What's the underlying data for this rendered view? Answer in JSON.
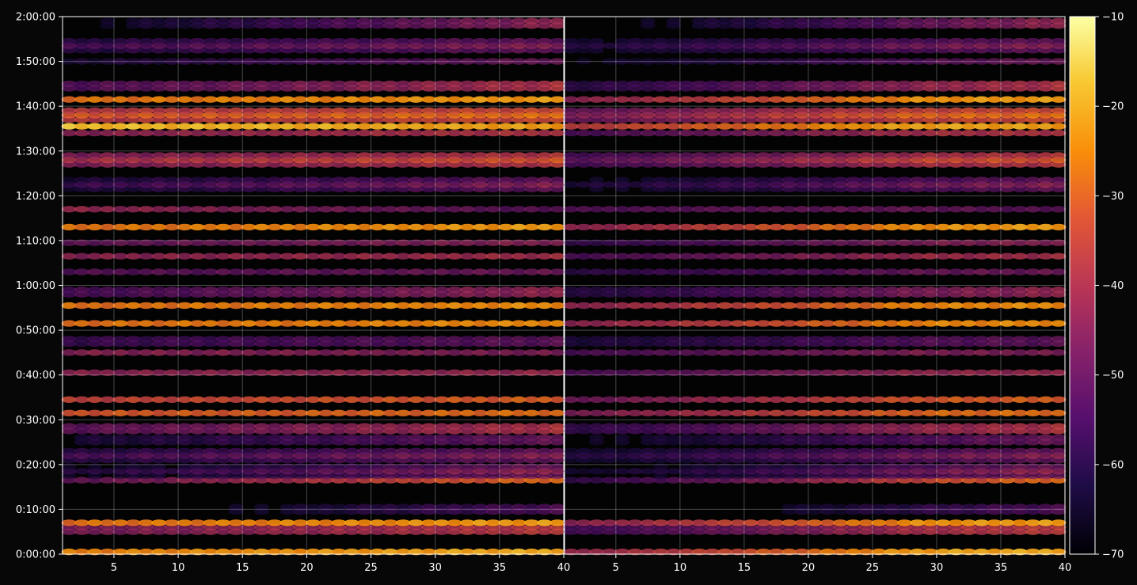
{
  "chart_data": {
    "type": "heatmap",
    "colormap": "inferno",
    "background": "#070707",
    "grid": true,
    "panels": [
      {
        "name": "",
        "xlim": [
          1,
          40
        ],
        "x_ticks": [
          5,
          10,
          15,
          20,
          25,
          30,
          35,
          40
        ],
        "intensity_scale": 1.0
      },
      {
        "name": "",
        "xlim": [
          1,
          40
        ],
        "x_ticks": [
          5,
          10,
          15,
          20,
          25,
          30,
          35,
          40
        ],
        "intensity_scale": 0.62
      }
    ],
    "y_axis": {
      "label": "",
      "min_seconds": 0,
      "max_seconds": 7200,
      "tick_labels": [
        "0:00:00",
        "0:10:00",
        "0:20:00",
        "0:30:00",
        "0:40:00",
        "0:50:00",
        "1:00:00",
        "1:10:00",
        "1:20:00",
        "1:30:00",
        "1:40:00",
        "1:50:00",
        "2:00:00"
      ]
    },
    "colorbar": {
      "min": -70,
      "max": -10,
      "ticks": [
        "−10",
        "−20",
        "−30",
        "−40",
        "−50",
        "−60",
        "−70"
      ]
    },
    "bands": [
      {
        "t_min": 0.5,
        "level_start": -26,
        "level_end": -20,
        "spread": 0.3
      },
      {
        "t_min": 5.5,
        "level_start": -44,
        "level_end": -34,
        "spread": 0.6
      },
      {
        "t_min": 7.0,
        "level_start": -28,
        "level_end": -22,
        "spread": 0.3
      },
      {
        "t_min": 10.0,
        "level_start": -68,
        "level_end": -50,
        "spread": 0.8
      },
      {
        "t_min": 16.5,
        "level_start": -50,
        "level_end": -28,
        "spread": 0.4
      },
      {
        "t_min": 18.5,
        "level_start": -60,
        "level_end": -42,
        "spread": 1.2
      },
      {
        "t_min": 22.0,
        "level_start": -54,
        "level_end": -44,
        "spread": 1.0
      },
      {
        "t_min": 25.5,
        "level_start": -60,
        "level_end": -46,
        "spread": 0.8
      },
      {
        "t_min": 28.0,
        "level_start": -48,
        "level_end": -36,
        "spread": 0.8
      },
      {
        "t_min": 31.5,
        "level_start": -32,
        "level_end": -28,
        "spread": 0.5
      },
      {
        "t_min": 34.5,
        "level_start": -36,
        "level_end": -30,
        "spread": 0.4
      },
      {
        "t_min": 40.5,
        "level_start": -44,
        "level_end": -42,
        "spread": 0.3
      },
      {
        "t_min": 45.0,
        "level_start": -44,
        "level_end": -46,
        "spread": 0.3
      },
      {
        "t_min": 47.5,
        "level_start": -54,
        "level_end": -48,
        "spread": 0.6
      },
      {
        "t_min": 51.5,
        "level_start": -28,
        "level_end": -24,
        "spread": 0.4
      },
      {
        "t_min": 55.5,
        "level_start": -28,
        "level_end": -24,
        "spread": 0.4
      },
      {
        "t_min": 58.5,
        "level_start": -52,
        "level_end": -40,
        "spread": 0.8
      },
      {
        "t_min": 63.0,
        "level_start": -52,
        "level_end": -48,
        "spread": 0.5
      },
      {
        "t_min": 66.5,
        "level_start": -44,
        "level_end": -40,
        "spread": 0.4
      },
      {
        "t_min": 69.5,
        "level_start": -50,
        "level_end": -44,
        "spread": 0.5
      },
      {
        "t_min": 73.0,
        "level_start": -28,
        "level_end": -22,
        "spread": 0.3
      },
      {
        "t_min": 77.0,
        "level_start": -42,
        "level_end": -52,
        "spread": 0.3
      },
      {
        "t_min": 82.5,
        "level_start": -56,
        "level_end": -44,
        "spread": 1.2
      },
      {
        "t_min": 88.0,
        "level_start": -40,
        "level_end": -32,
        "spread": 1.2
      },
      {
        "t_min": 94.0,
        "level_start": -44,
        "level_end": -38,
        "spread": 0.5
      },
      {
        "t_min": 95.5,
        "level_start": -18,
        "level_end": -22,
        "spread": 0.4
      },
      {
        "t_min": 98.0,
        "level_start": -32,
        "level_end": -28,
        "spread": 1.0
      },
      {
        "t_min": 101.5,
        "level_start": -28,
        "level_end": -22,
        "spread": 0.4
      },
      {
        "t_min": 104.5,
        "level_start": -50,
        "level_end": -36,
        "spread": 0.8
      },
      {
        "t_min": 110.0,
        "level_start": -62,
        "level_end": -48,
        "spread": 0.5
      },
      {
        "t_min": 113.5,
        "level_start": -54,
        "level_end": -44,
        "spread": 1.5
      },
      {
        "t_min": 118.5,
        "level_start": -64,
        "level_end": -40,
        "spread": 0.8
      }
    ]
  }
}
